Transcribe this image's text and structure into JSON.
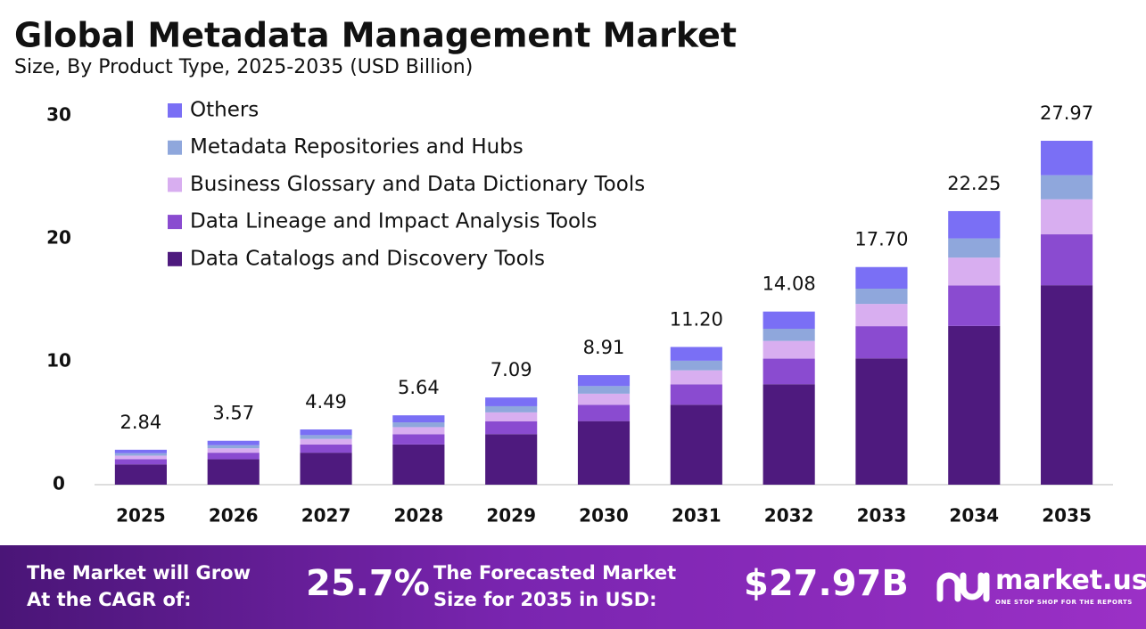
{
  "chart_data": {
    "type": "bar",
    "stacked": true,
    "title": "Global Metadata Management Market",
    "subtitle": "Size, By Product Type, 2025-2035 (USD Billion)",
    "categories": [
      "2025",
      "2026",
      "2027",
      "2028",
      "2029",
      "2030",
      "2031",
      "2032",
      "2033",
      "2034",
      "2035"
    ],
    "series": [
      {
        "name": "Data Catalogs and Discovery Tools",
        "color": "#4e1a7e",
        "values": [
          1.65,
          2.07,
          2.6,
          3.27,
          4.11,
          5.17,
          6.5,
          8.17,
          10.27,
          12.91,
          16.22
        ]
      },
      {
        "name": "Data Lineage and Impact Analysis Tools",
        "color": "#8a4bd0",
        "values": [
          0.42,
          0.53,
          0.66,
          0.83,
          1.05,
          1.32,
          1.66,
          2.08,
          2.62,
          3.29,
          4.14
        ]
      },
      {
        "name": "Business Glossary and Data Dictionary Tools",
        "color": "#d8aef0",
        "values": [
          0.29,
          0.36,
          0.46,
          0.58,
          0.72,
          0.91,
          1.14,
          1.44,
          1.81,
          2.27,
          2.85
        ]
      },
      {
        "name": "Metadata Repositories and Hubs",
        "color": "#8fa7dc",
        "values": [
          0.2,
          0.25,
          0.31,
          0.39,
          0.5,
          0.62,
          0.78,
          0.99,
          1.24,
          1.56,
          1.96
        ]
      },
      {
        "name": "Others",
        "color": "#7a6ff5",
        "values": [
          0.28,
          0.36,
          0.46,
          0.57,
          0.71,
          0.89,
          1.12,
          1.4,
          1.76,
          2.22,
          2.8
        ]
      }
    ],
    "totals": [
      2.84,
      3.57,
      4.49,
      5.64,
      7.09,
      8.91,
      11.2,
      14.08,
      17.7,
      22.25,
      27.97
    ],
    "total_labels": [
      "2.84",
      "3.57",
      "4.49",
      "5.64",
      "7.09",
      "8.91",
      "11.20",
      "14.08",
      "17.70",
      "22.25",
      "27.97"
    ],
    "ylim": [
      0,
      30
    ],
    "yticks": [
      0,
      10,
      20,
      30
    ],
    "grid": false,
    "legend": "upper left"
  },
  "footer": {
    "cagr_text": [
      "The Market will Grow",
      "At the CAGR of:"
    ],
    "cagr": "25.7%",
    "forecast_text": [
      "The Forecasted Market",
      "Size for 2035 in USD:"
    ],
    "forecast": "$27.97B",
    "brand": "market.us",
    "tagline": "ONE STOP SHOP FOR THE REPORTS"
  }
}
